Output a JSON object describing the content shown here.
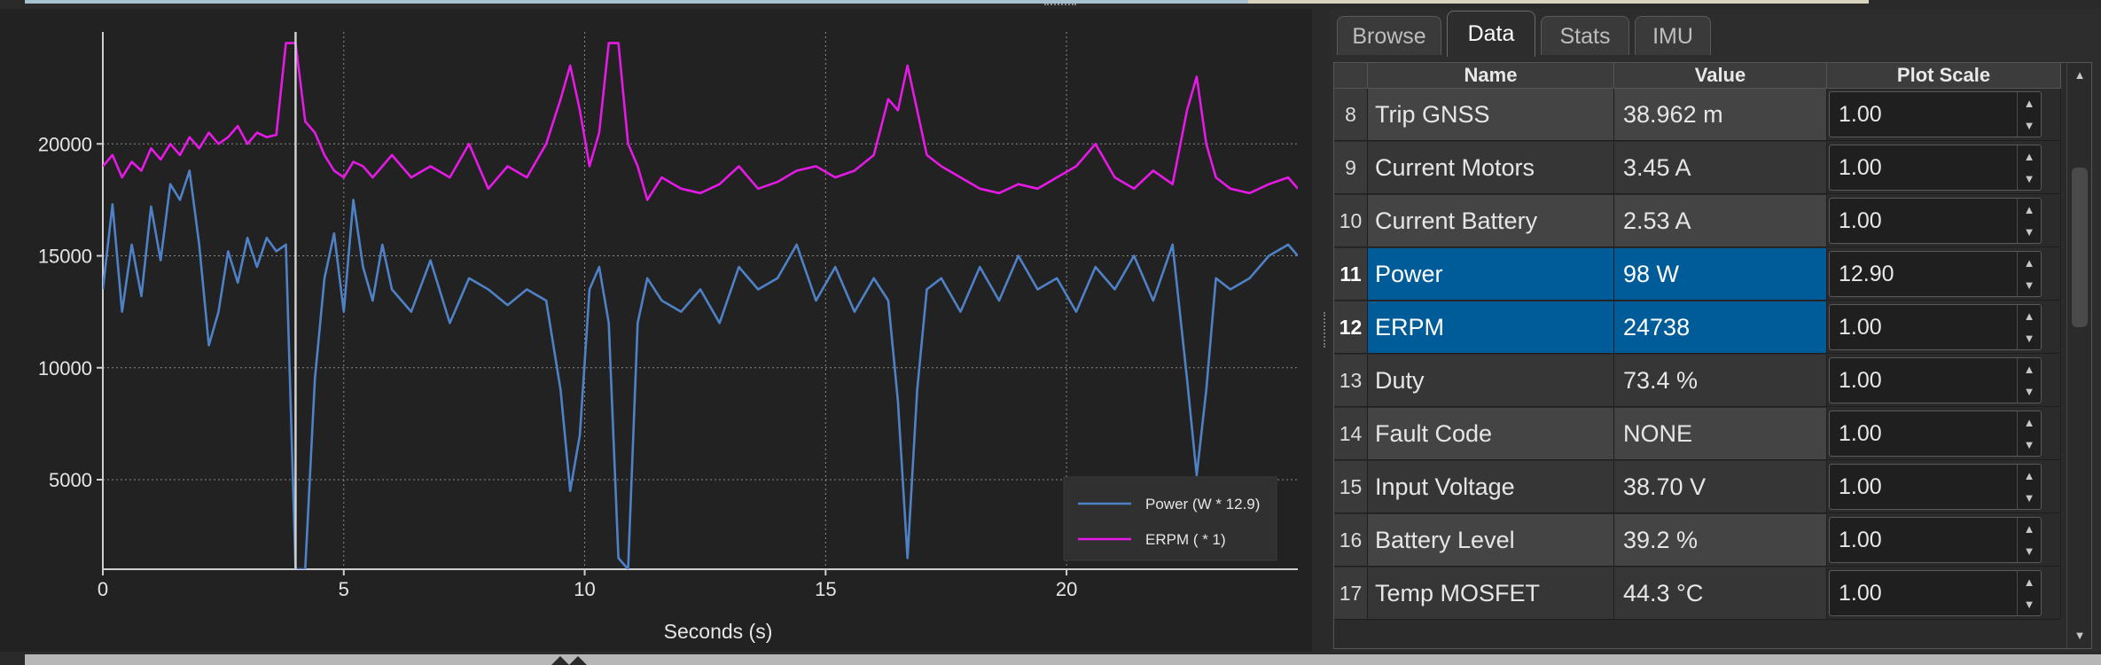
{
  "colors": {
    "power": "#4f81c7",
    "erpm": "#e619e6",
    "grid": "#8a8a8a",
    "cursor": "#d0d0d0",
    "selected_row": "#005c99"
  },
  "tabs": [
    {
      "label": "Browse",
      "active": false
    },
    {
      "label": "Data",
      "active": true
    },
    {
      "label": "Stats",
      "active": false
    },
    {
      "label": "IMU",
      "active": false
    }
  ],
  "table": {
    "headers": {
      "index": "",
      "name": "Name",
      "value": "Value",
      "scale": "Plot Scale"
    },
    "rows": [
      {
        "idx": "8",
        "name": "Trip GNSS",
        "value": "38.962 m",
        "scale": "1.00",
        "selected": false
      },
      {
        "idx": "9",
        "name": "Current Motors",
        "value": "3.45 A",
        "scale": "1.00",
        "selected": false
      },
      {
        "idx": "10",
        "name": "Current Battery",
        "value": "2.53 A",
        "scale": "1.00",
        "selected": false
      },
      {
        "idx": "11",
        "name": "Power",
        "value": "98 W",
        "scale": "12.90",
        "selected": true
      },
      {
        "idx": "12",
        "name": "ERPM",
        "value": "24738",
        "scale": "1.00",
        "selected": true
      },
      {
        "idx": "13",
        "name": "Duty",
        "value": "73.4 %",
        "scale": "1.00",
        "selected": false
      },
      {
        "idx": "14",
        "name": "Fault Code",
        "value": "NONE",
        "scale": "1.00",
        "selected": false
      },
      {
        "idx": "15",
        "name": "Input Voltage",
        "value": "38.70 V",
        "scale": "1.00",
        "selected": false
      },
      {
        "idx": "16",
        "name": "Battery Level",
        "value": "39.2 %",
        "scale": "1.00",
        "selected": false
      },
      {
        "idx": "17",
        "name": "Temp MOSFET",
        "value": "44.3 °C",
        "scale": "1.00",
        "selected": false
      }
    ]
  },
  "chart_data": {
    "type": "line",
    "xlabel": "Seconds (s)",
    "ylabel": "",
    "xlim": [
      0,
      24.8
    ],
    "ylim": [
      1000,
      25000
    ],
    "xticks": [
      0,
      5,
      10,
      15,
      20
    ],
    "yticks": [
      5000,
      10000,
      15000,
      20000
    ],
    "grid": true,
    "legend_position": "bottom-right",
    "cursor_x": 4.0,
    "series": [
      {
        "name": "Power (W * 12.9)",
        "x": [
          0,
          0.2,
          0.4,
          0.6,
          0.8,
          1.0,
          1.2,
          1.4,
          1.6,
          1.8,
          2.0,
          2.2,
          2.4,
          2.6,
          2.8,
          3.0,
          3.2,
          3.4,
          3.6,
          3.8,
          4.0,
          4.2,
          4.4,
          4.6,
          4.8,
          5.0,
          5.2,
          5.4,
          5.6,
          5.8,
          6.0,
          6.4,
          6.8,
          7.2,
          7.6,
          8.0,
          8.4,
          8.8,
          9.2,
          9.5,
          9.7,
          9.9,
          10.1,
          10.3,
          10.5,
          10.7,
          10.9,
          11.1,
          11.3,
          11.6,
          12.0,
          12.4,
          12.8,
          13.2,
          13.6,
          14.0,
          14.4,
          14.8,
          15.2,
          15.6,
          16.0,
          16.3,
          16.5,
          16.7,
          16.9,
          17.1,
          17.4,
          17.8,
          18.2,
          18.6,
          19.0,
          19.4,
          19.8,
          20.2,
          20.6,
          21.0,
          21.4,
          21.8,
          22.2,
          22.5,
          22.7,
          22.9,
          23.1,
          23.4,
          23.8,
          24.2,
          24.6,
          24.8
        ],
        "values": [
          13500,
          17300,
          12500,
          15500,
          13200,
          17200,
          14800,
          18200,
          17500,
          18800,
          15500,
          11000,
          12500,
          15200,
          13800,
          15800,
          14500,
          15800,
          15200,
          15500,
          1000,
          1000,
          9500,
          14000,
          16000,
          12500,
          17500,
          14500,
          13000,
          15500,
          13500,
          12500,
          14800,
          12000,
          14000,
          13500,
          12800,
          13500,
          13000,
          9000,
          4500,
          7000,
          13500,
          14500,
          12000,
          1500,
          1000,
          12000,
          14000,
          13000,
          12500,
          13500,
          12000,
          14500,
          13500,
          14000,
          15500,
          13000,
          14500,
          12500,
          14000,
          13000,
          8500,
          1500,
          9000,
          13500,
          14000,
          12500,
          14500,
          13000,
          15000,
          13500,
          14000,
          12500,
          14500,
          13500,
          15000,
          13000,
          15500,
          9500,
          5200,
          9000,
          14000,
          13500,
          14000,
          15000,
          15500,
          15000
        ]
      },
      {
        "name": "ERPM ( * 1)",
        "x": [
          0,
          0.2,
          0.4,
          0.6,
          0.8,
          1.0,
          1.2,
          1.4,
          1.6,
          1.8,
          2.0,
          2.2,
          2.4,
          2.6,
          2.8,
          3.0,
          3.2,
          3.4,
          3.6,
          3.8,
          4.0,
          4.2,
          4.4,
          4.6,
          4.8,
          5.0,
          5.2,
          5.4,
          5.6,
          5.8,
          6.0,
          6.4,
          6.8,
          7.2,
          7.6,
          8.0,
          8.4,
          8.8,
          9.2,
          9.5,
          9.7,
          9.9,
          10.1,
          10.3,
          10.5,
          10.7,
          10.9,
          11.1,
          11.3,
          11.6,
          12.0,
          12.4,
          12.8,
          13.2,
          13.6,
          14.0,
          14.4,
          14.8,
          15.2,
          15.6,
          16.0,
          16.3,
          16.5,
          16.7,
          16.9,
          17.1,
          17.4,
          17.8,
          18.2,
          18.6,
          19.0,
          19.4,
          19.8,
          20.2,
          20.6,
          21.0,
          21.4,
          21.8,
          22.2,
          22.5,
          22.7,
          22.9,
          23.1,
          23.4,
          23.8,
          24.2,
          24.6,
          24.8
        ],
        "values": [
          19000,
          19500,
          18500,
          19200,
          18800,
          19800,
          19300,
          20000,
          19500,
          20300,
          19800,
          20500,
          20000,
          20300,
          20800,
          20000,
          20500,
          20300,
          20400,
          24500,
          24500,
          21000,
          20500,
          19500,
          18800,
          18500,
          19200,
          19000,
          18500,
          19000,
          19500,
          18500,
          19000,
          18500,
          20000,
          18000,
          19000,
          18500,
          20000,
          22000,
          23500,
          21500,
          19000,
          20500,
          24500,
          24500,
          20000,
          19000,
          17500,
          18500,
          18000,
          17800,
          18200,
          19000,
          18000,
          18300,
          18800,
          19000,
          18500,
          18800,
          19500,
          22000,
          21500,
          23500,
          21500,
          19500,
          19000,
          18500,
          18000,
          17800,
          18200,
          18000,
          18500,
          19000,
          20000,
          18500,
          18000,
          18800,
          18200,
          21500,
          23000,
          20000,
          18500,
          18000,
          17800,
          18200,
          18500,
          18000
        ]
      }
    ]
  }
}
